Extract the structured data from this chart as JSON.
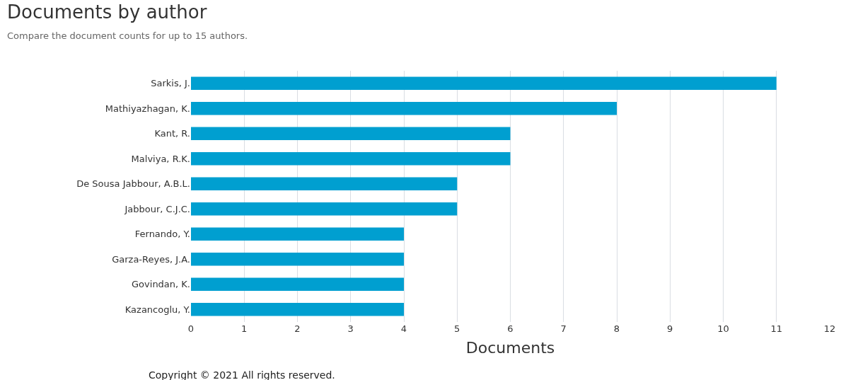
{
  "chart_data": {
    "type": "bar",
    "orientation": "horizontal",
    "title": "Documents by author",
    "subtitle": "Compare the document counts for up to 15 authors.",
    "xlabel": "Documents",
    "categories": [
      "Sarkis, J.",
      "Mathiyazhagan, K.",
      "Kant, R.",
      "Malviya, R.K.",
      "De Sousa Jabbour, A.B.L.",
      "Jabbour, C.J.C.",
      "Fernando, Y.",
      "Garza-Reyes, J.A.",
      "Govindan, K.",
      "Kazancoglu, Y."
    ],
    "values": [
      11,
      8,
      6,
      6,
      5,
      5,
      4,
      4,
      4,
      4
    ],
    "color": "#009fd0",
    "xlim": [
      0,
      12
    ],
    "xticks": [
      0,
      1,
      2,
      3,
      4,
      5,
      6,
      7,
      8,
      9,
      10,
      11,
      12
    ],
    "grid": "x",
    "legend": false,
    "annotations": [
      "Copyright © 2021 All rights reserved."
    ]
  }
}
